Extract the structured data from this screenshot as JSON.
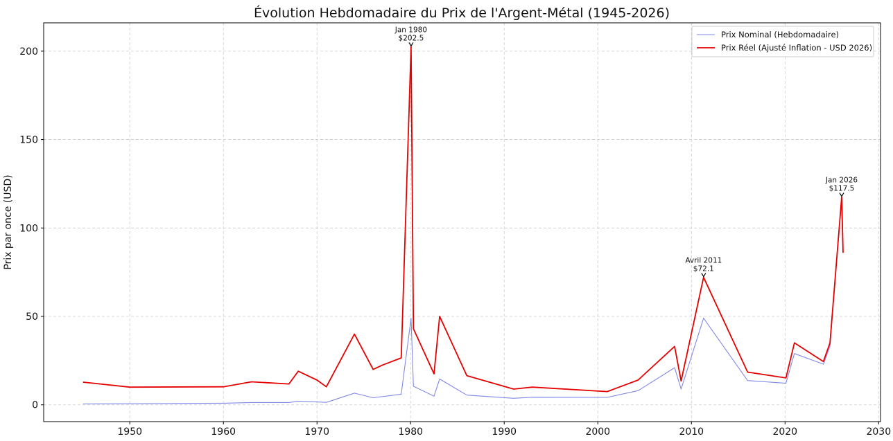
{
  "chart_data": {
    "type": "line",
    "title": "Évolution Hebdomadaire du Prix de l'Argent-Métal (1945-2026)",
    "xlabel": "",
    "ylabel": "Prix par once (USD)",
    "xlim": [
      1940.8,
      2030.2
    ],
    "ylim": [
      -9.5,
      216
    ],
    "x_ticks": [
      1950,
      1960,
      1970,
      1980,
      1990,
      2000,
      2010,
      2020,
      2030
    ],
    "y_ticks": [
      0,
      50,
      100,
      150,
      200
    ],
    "grid": true,
    "legend_position": "top-right",
    "series": [
      {
        "name": "Prix Nominal (Hebdomadaire)",
        "color": "#8088e8",
        "x": [
          1945,
          1950,
          1960,
          1963,
          1967,
          1968,
          1971,
          1974,
          1976,
          1979,
          1980.05,
          1980.3,
          1982.5,
          1983.1,
          1986,
          1991,
          1993,
          2001,
          2004.3,
          2008.2,
          2008.9,
          2011.3,
          2016,
          2020.1,
          2021,
          2024.1,
          2024.8,
          2026.05,
          2026.2
        ],
        "y": [
          0.5,
          0.6,
          0.9,
          1.3,
          1.3,
          2.1,
          1.4,
          6.6,
          4.0,
          6.0,
          49.0,
          10.5,
          4.9,
          14.6,
          5.5,
          3.7,
          4.3,
          4.2,
          8.0,
          21.0,
          8.9,
          49.0,
          13.7,
          12.2,
          29.0,
          23.0,
          33.0,
          117.5,
          86.0
        ]
      },
      {
        "name": "Prix Réel (Ajusté Inflation - USD 2026)",
        "color": "#e60000",
        "x": [
          1945,
          1950,
          1960,
          1963,
          1967,
          1968,
          1970,
          1971,
          1974,
          1976,
          1977,
          1979,
          1980.05,
          1980.3,
          1982.5,
          1983.1,
          1986,
          1991,
          1993,
          2001,
          2004.3,
          2008.2,
          2008.9,
          2011.3,
          2016,
          2020.1,
          2021,
          2024.1,
          2024.8,
          2026.05,
          2026.2
        ],
        "y": [
          12.8,
          10.0,
          10.2,
          13.0,
          11.8,
          19.0,
          14.0,
          10.2,
          40.0,
          20.0,
          22.5,
          26.5,
          202.5,
          43.0,
          17.5,
          50.0,
          16.5,
          8.9,
          10.0,
          7.5,
          14.0,
          33.0,
          13.5,
          72.1,
          18.5,
          15.2,
          35.0,
          24.5,
          35.0,
          117.5,
          86.0
        ]
      }
    ],
    "annotations": [
      {
        "line1": "Jan 1980",
        "line2": "$202.5",
        "x": 1980.05,
        "y": 202.5
      },
      {
        "line1": "Avril 2011",
        "line2": "$72.1",
        "x": 2011.3,
        "y": 72.1
      },
      {
        "line1": "Jan 2026",
        "line2": "$117.5",
        "x": 2026.05,
        "y": 117.5
      }
    ]
  }
}
